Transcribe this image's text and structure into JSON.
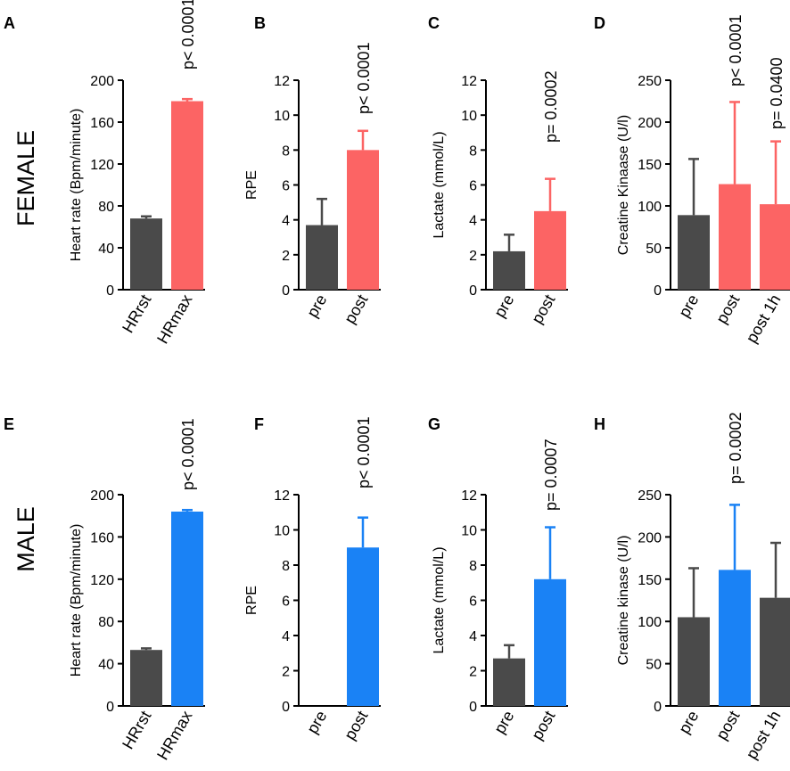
{
  "figure": {
    "row_labels": [
      "FEMALE",
      "MALE"
    ]
  },
  "colors": {
    "dark": "#4a4a4a",
    "female": "#fc6464",
    "male": "#1a82f5"
  },
  "chart_data": [
    {
      "id": "A",
      "letter": "A",
      "type": "bar",
      "row": 0,
      "col": 0,
      "ylabel": "Heart rate (Bpm/minute)",
      "ylim": [
        0,
        200
      ],
      "ticks": [
        0,
        40,
        80,
        120,
        160,
        200
      ],
      "categories": [
        "HRrst",
        "HRmax"
      ],
      "values": [
        68,
        180
      ],
      "errors": [
        2,
        2
      ],
      "bar_colors": [
        "dark",
        "female"
      ],
      "annotations": [
        {
          "bar": 1,
          "text": "p< 0.0001"
        }
      ]
    },
    {
      "id": "B",
      "letter": "B",
      "type": "bar",
      "row": 0,
      "col": 1,
      "ylabel": "RPE",
      "ylim": [
        0,
        12
      ],
      "ticks": [
        0,
        2,
        4,
        6,
        8,
        10,
        12
      ],
      "categories": [
        "pre",
        "post"
      ],
      "values": [
        3.7,
        8.0
      ],
      "errors": [
        1.5,
        1.1
      ],
      "bar_colors": [
        "dark",
        "female"
      ],
      "annotations": [
        {
          "bar": 1,
          "text": "p< 0.0001"
        }
      ]
    },
    {
      "id": "C",
      "letter": "C",
      "type": "bar",
      "row": 0,
      "col": 2,
      "ylabel": "Lactate (mmol/L)",
      "ylim": [
        0,
        12
      ],
      "ticks": [
        0,
        2,
        4,
        6,
        8,
        10,
        12
      ],
      "categories": [
        "pre",
        "post"
      ],
      "values": [
        2.2,
        4.5
      ],
      "errors": [
        0.95,
        1.85
      ],
      "bar_colors": [
        "dark",
        "female"
      ],
      "annotations": [
        {
          "bar": 1,
          "text": "p= 0.0002"
        }
      ]
    },
    {
      "id": "D",
      "letter": "D",
      "type": "bar",
      "row": 0,
      "col": 3,
      "ylabel": "Creatine Kinaase (U/l)",
      "ylim": [
        0,
        250
      ],
      "ticks": [
        0,
        50,
        100,
        150,
        200,
        250
      ],
      "categories": [
        "pre",
        "post",
        "post 1h"
      ],
      "values": [
        89,
        126,
        102
      ],
      "errors": [
        67,
        98,
        75
      ],
      "bar_colors": [
        "dark",
        "female",
        "female"
      ],
      "annotations": [
        {
          "bar": 1,
          "text": "p< 0.0001"
        },
        {
          "bar": 2,
          "text": "p= 0.0400"
        }
      ]
    },
    {
      "id": "E",
      "letter": "E",
      "type": "bar",
      "row": 1,
      "col": 0,
      "ylabel": "Heart rate (Bpm/minute)",
      "ylim": [
        0,
        200
      ],
      "ticks": [
        0,
        40,
        80,
        120,
        160,
        200
      ],
      "categories": [
        "HRrst",
        "HRmax"
      ],
      "values": [
        53,
        184
      ],
      "errors": [
        1.5,
        1.5
      ],
      "bar_colors": [
        "dark",
        "male"
      ],
      "annotations": [
        {
          "bar": 1,
          "text": "p< 0.0001"
        }
      ]
    },
    {
      "id": "F",
      "letter": "F",
      "type": "bar",
      "row": 1,
      "col": 1,
      "ylabel": "RPE",
      "ylim": [
        0,
        12
      ],
      "ticks": [
        0,
        2,
        4,
        6,
        8,
        10,
        12
      ],
      "categories": [
        "pre",
        "post"
      ],
      "values": [
        0,
        9.0
      ],
      "errors": [
        0,
        1.7
      ],
      "bar_colors": [
        "dark",
        "male"
      ],
      "annotations": [
        {
          "bar": 1,
          "text": "p< 0.0001"
        }
      ]
    },
    {
      "id": "G",
      "letter": "G",
      "type": "bar",
      "row": 1,
      "col": 2,
      "ylabel": "Lactate (mmol/L)",
      "ylim": [
        0,
        12
      ],
      "ticks": [
        0,
        2,
        4,
        6,
        8,
        10,
        12
      ],
      "categories": [
        "pre",
        "post"
      ],
      "values": [
        2.7,
        7.2
      ],
      "errors": [
        0.75,
        2.95
      ],
      "bar_colors": [
        "dark",
        "male"
      ],
      "annotations": [
        {
          "bar": 1,
          "text": "p= 0.0007"
        }
      ]
    },
    {
      "id": "H",
      "letter": "H",
      "type": "bar",
      "row": 1,
      "col": 3,
      "ylabel": "Creatine kinase (U/l)",
      "ylim": [
        0,
        250
      ],
      "ticks": [
        0,
        50,
        100,
        150,
        200,
        250
      ],
      "categories": [
        "pre",
        "post",
        "post 1h"
      ],
      "values": [
        105,
        161,
        128
      ],
      "errors": [
        58,
        77,
        65
      ],
      "bar_colors": [
        "dark",
        "male",
        "dark"
      ],
      "annotations": [
        {
          "bar": 1,
          "text": "p= 0.0002"
        }
      ]
    }
  ]
}
